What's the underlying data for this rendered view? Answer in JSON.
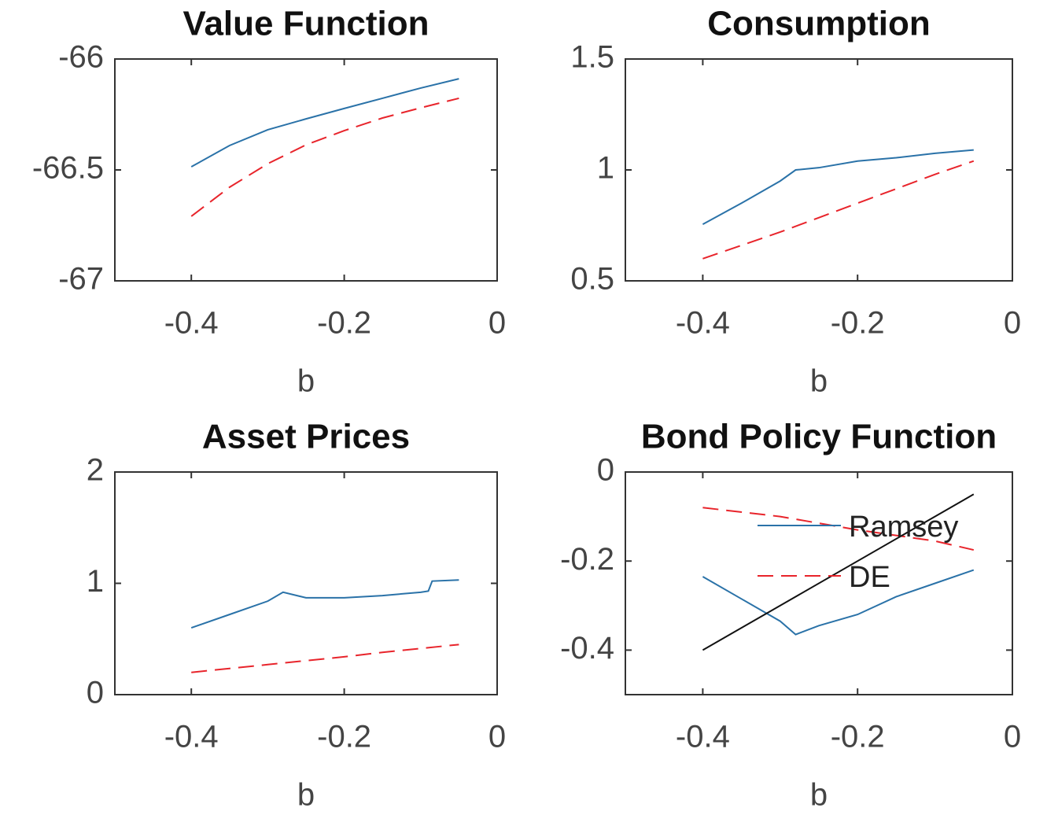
{
  "chart_data": [
    {
      "type": "line",
      "title": "Value Function",
      "xlabel": "b",
      "xlim": [
        -0.5,
        0
      ],
      "xticks": [
        -0.4,
        -0.2,
        0
      ],
      "ylim": [
        -67,
        -66
      ],
      "yticks": [
        -67,
        -66.5,
        -66
      ],
      "box": true,
      "series": [
        {
          "name": "Ramsey",
          "color": "#2a72a8",
          "dash": "solid",
          "x": [
            -0.4,
            -0.35,
            -0.3,
            -0.25,
            -0.2,
            -0.15,
            -0.1,
            -0.05
          ],
          "values": [
            -66.486,
            -66.39,
            -66.319,
            -66.27,
            -66.223,
            -66.177,
            -66.131,
            -66.089
          ]
        },
        {
          "name": "DE",
          "color": "#e8242b",
          "dash": "dashed",
          "x": [
            -0.4,
            -0.35,
            -0.3,
            -0.25,
            -0.2,
            -0.15,
            -0.1,
            -0.05
          ],
          "values": [
            -66.709,
            -66.578,
            -66.472,
            -66.387,
            -66.323,
            -66.266,
            -66.22,
            -66.177
          ]
        }
      ]
    },
    {
      "type": "line",
      "title": "Consumption",
      "xlabel": "b",
      "xlim": [
        -0.5,
        0
      ],
      "xticks": [
        -0.4,
        -0.2,
        0
      ],
      "ylim": [
        0.5,
        1.5
      ],
      "yticks": [
        0.5,
        1,
        1.5
      ],
      "box": true,
      "series": [
        {
          "name": "Ramsey",
          "color": "#2a72a8",
          "dash": "solid",
          "x": [
            -0.4,
            -0.35,
            -0.3,
            -0.28,
            -0.25,
            -0.2,
            -0.15,
            -0.1,
            -0.05
          ],
          "values": [
            0.755,
            0.85,
            0.95,
            1.0,
            1.01,
            1.04,
            1.055,
            1.075,
            1.09
          ]
        },
        {
          "name": "DE",
          "color": "#e8242b",
          "dash": "dashed",
          "x": [
            -0.4,
            -0.35,
            -0.3,
            -0.25,
            -0.2,
            -0.15,
            -0.1,
            -0.05
          ],
          "values": [
            0.6,
            0.66,
            0.72,
            0.785,
            0.85,
            0.915,
            0.98,
            1.04
          ]
        }
      ]
    },
    {
      "type": "line",
      "title": "Asset Prices",
      "xlabel": "b",
      "xlim": [
        -0.5,
        0
      ],
      "xticks": [
        -0.4,
        -0.2,
        0
      ],
      "ylim": [
        0,
        2
      ],
      "yticks": [
        0,
        1,
        2
      ],
      "box": true,
      "series": [
        {
          "name": "Ramsey",
          "color": "#2a72a8",
          "dash": "solid",
          "x": [
            -0.4,
            -0.35,
            -0.3,
            -0.28,
            -0.25,
            -0.2,
            -0.15,
            -0.1,
            -0.09,
            -0.085,
            -0.05
          ],
          "values": [
            0.6,
            0.72,
            0.84,
            0.92,
            0.87,
            0.87,
            0.89,
            0.92,
            0.93,
            1.02,
            1.03
          ]
        },
        {
          "name": "DE",
          "color": "#e8242b",
          "dash": "dashed",
          "x": [
            -0.4,
            -0.35,
            -0.3,
            -0.25,
            -0.2,
            -0.15,
            -0.1,
            -0.05
          ],
          "values": [
            0.2,
            0.235,
            0.27,
            0.305,
            0.34,
            0.38,
            0.415,
            0.45
          ]
        }
      ]
    },
    {
      "type": "line",
      "title": "Bond Policy Function",
      "xlabel": "b",
      "xlim": [
        -0.5,
        0
      ],
      "xticks": [
        -0.4,
        -0.2,
        0
      ],
      "ylim": [
        -0.5,
        0
      ],
      "yticks": [
        -0.4,
        -0.2,
        0
      ],
      "box": true,
      "legend": "northeast",
      "series": [
        {
          "name": "Ramsey",
          "color": "#2a72a8",
          "dash": "solid",
          "x": [
            -0.4,
            -0.35,
            -0.3,
            -0.28,
            -0.25,
            -0.2,
            -0.15,
            -0.1,
            -0.05
          ],
          "values": [
            -0.235,
            -0.285,
            -0.335,
            -0.365,
            -0.345,
            -0.32,
            -0.28,
            -0.25,
            -0.22
          ]
        },
        {
          "name": "DE",
          "color": "#e8242b",
          "dash": "dashed",
          "x": [
            -0.4,
            -0.3,
            -0.2,
            -0.1,
            -0.05
          ],
          "values": [
            -0.08,
            -0.1,
            -0.13,
            -0.155,
            -0.175
          ]
        },
        {
          "color": "#111111",
          "dash": "solid",
          "x": [
            -0.4,
            -0.05
          ],
          "values": [
            -0.4,
            -0.05
          ]
        }
      ]
    }
  ]
}
